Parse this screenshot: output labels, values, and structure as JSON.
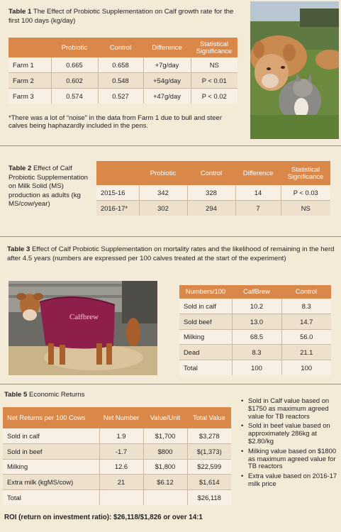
{
  "table1": {
    "label": "Table 1",
    "title": "The Effect of Probiotic Supplementation on Calf growth rate for the first 100 days (kg/day)",
    "headers": [
      "",
      "Probiotic",
      "Control",
      "Difference",
      "Statistical Significance"
    ],
    "rows": [
      [
        "Farm 1",
        "0.665",
        "0.658",
        "+7g/day",
        "NS"
      ],
      [
        "Farm 2",
        "0.602",
        "0.548",
        "+54g/day",
        "P < 0.01"
      ],
      [
        "Farm 3",
        "0.574",
        "0.527",
        "+47g/day",
        "P < 0.02"
      ]
    ],
    "note": "*There was a lot of “noise” in the data from Farm 1 due to bull and steer calves being haphazardly included in the pens."
  },
  "table2": {
    "label": "Table 2",
    "title": "Effect of Calf Probiotic Supplementation on Milk Solid (MS) production as adults (kg MS/cow/year)",
    "headers": [
      "",
      "Probiotic",
      "Control",
      "Difference",
      "Statistical Significance"
    ],
    "rows": [
      [
        "2015-16",
        "342",
        "328",
        "14",
        "P < 0.03"
      ],
      [
        "2016-17*",
        "302",
        "294",
        "7",
        "NS"
      ]
    ]
  },
  "table3": {
    "label": "Table 3",
    "title": "Effect of Calf Probiotic Supplementation on mortality rates and the likelihood of remaining in the herd after 4.5 years (numbers are expressed per 100 calves treated at the start of the experiment)",
    "headers": [
      "Numbers/100",
      "CalfBrew",
      "Control"
    ],
    "rows": [
      [
        "Sold in calf",
        "10.2",
        "8.3"
      ],
      [
        "Sold beef",
        "13.0",
        "14.7"
      ],
      [
        "Milking",
        "68.5",
        "56.0"
      ],
      [
        "Dead",
        "8.3",
        "21.1"
      ],
      [
        "Total",
        "100",
        "100"
      ]
    ],
    "coat_text": "Calfbrew"
  },
  "table5": {
    "label": "Table 5",
    "title": "Economic Returns",
    "headers": [
      "Net Returns per 100 Cows",
      "Net Number",
      "Value/Unit",
      "Total Value"
    ],
    "rows": [
      [
        "Sold in calf",
        "1.9",
        "$1,700",
        "$3,278"
      ],
      [
        "Sold in beef",
        "-1.7",
        "$800",
        "$(1,373)"
      ],
      [
        "Milking",
        "12.6",
        "$1,800",
        "$22,599"
      ],
      [
        "Extra milk (kgMS/cow)",
        "21",
        "$6.12",
        "$1,614"
      ],
      [
        "Total",
        "",
        "",
        "$26,118"
      ]
    ],
    "roi": "ROI (return on investment ratio): $26,118/$1,826 or over 14:1",
    "bullets": [
      "Sold in Calf value based on $1750 as maximum agreed value for TB reactors",
      "Sold in beef value based on approximately 286kg at $2.80/kg",
      "Milking value based on $1800 as maximum agreed value for TB reactors",
      "Extra value based on 2016-17 milk price"
    ]
  },
  "colors": {
    "background": "#f4ead8",
    "header_orange": "#d9884a",
    "row_stripe": "#ede0cc"
  }
}
